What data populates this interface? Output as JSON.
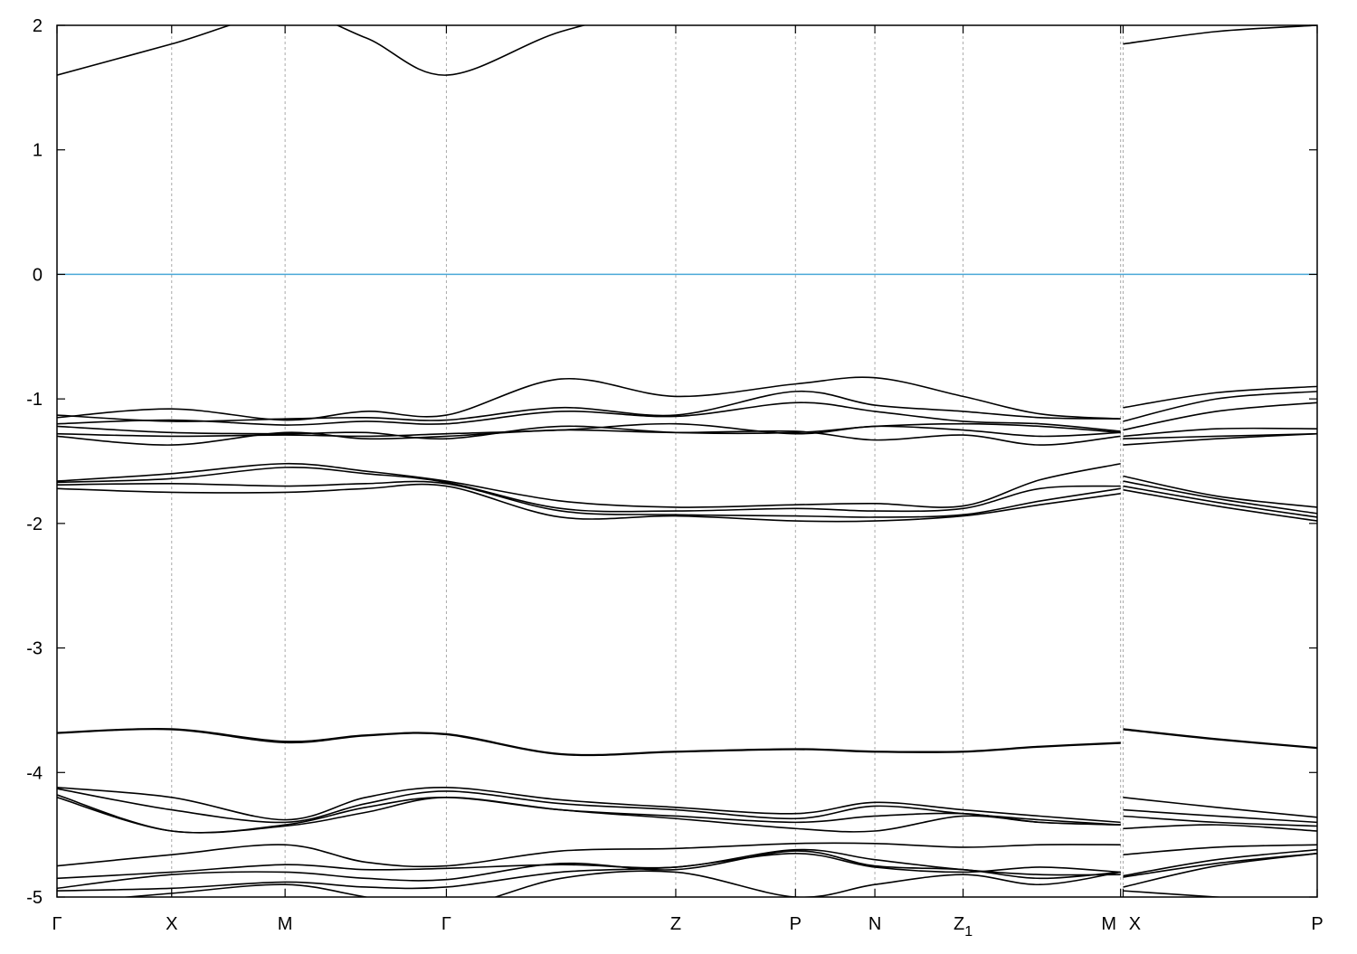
{
  "chart_data": {
    "type": "line",
    "title": "",
    "xlabel": "",
    "ylabel": "",
    "ylim": [
      -5,
      2
    ],
    "xlim": [
      0,
      10
    ],
    "y_ticks": [
      "-5",
      "-4",
      "-3",
      "-2",
      "-1",
      "0",
      "1",
      "2"
    ],
    "grid": "vertical dashed lines at high-symmetry points",
    "fermi_level": {
      "value": 0,
      "color": "#4aa8d8"
    },
    "band_color": "#000000",
    "high_symmetry_points": [
      {
        "label": "Γ",
        "sub": "",
        "k": 0
      },
      {
        "label": "X",
        "sub": "",
        "k": 0.91
      },
      {
        "label": "M",
        "sub": "",
        "k": 1.81
      },
      {
        "label": "Γ",
        "sub": "",
        "k": 3.09
      },
      {
        "label": "Z",
        "sub": "",
        "k": 4.91
      },
      {
        "label": "P",
        "sub": "",
        "k": 5.86
      },
      {
        "label": "N",
        "sub": "",
        "k": 6.49
      },
      {
        "label": "Z",
        "sub": "1",
        "k": 7.19
      },
      {
        "label": "M",
        "sub": "",
        "k": 8.44
      },
      {
        "label": "X",
        "sub": "",
        "k": 8.46
      },
      {
        "label": "P",
        "sub": "",
        "k": 10
      }
    ],
    "segment_a_k": [
      0,
      0.91,
      1.81,
      2.45,
      3.09,
      4.0,
      4.91,
      5.86,
      6.49,
      7.19,
      7.8,
      8.44
    ],
    "segment_b_k": [
      8.46,
      9.2,
      10
    ],
    "bands": [
      {
        "a": [
          1.6,
          1.85,
          2.1,
          1.9,
          1.6,
          1.95,
          2.15,
          2.3,
          2.3,
          2.3,
          2.3,
          2.3
        ],
        "b": [
          1.85,
          1.95,
          2.0
        ]
      },
      {
        "a": [
          -1.15,
          -1.08,
          -1.17,
          -1.1,
          -1.13,
          -0.84,
          -0.98,
          -0.88,
          -0.83,
          -0.98,
          -1.12,
          -1.16
        ],
        "b": [
          -1.07,
          -0.95,
          -0.9
        ]
      },
      {
        "a": [
          -1.13,
          -1.18,
          -1.16,
          -1.15,
          -1.17,
          -1.07,
          -1.13,
          -0.94,
          -1.05,
          -1.1,
          -1.15,
          -1.16
        ],
        "b": [
          -1.18,
          -1.0,
          -0.94
        ]
      },
      {
        "a": [
          -1.2,
          -1.17,
          -1.21,
          -1.18,
          -1.2,
          -1.1,
          -1.14,
          -1.03,
          -1.1,
          -1.18,
          -1.2,
          -1.26
        ],
        "b": [
          -1.25,
          -1.1,
          -1.03
        ]
      },
      {
        "a": [
          -1.22,
          -1.27,
          -1.28,
          -1.27,
          -1.32,
          -1.22,
          -1.27,
          -1.27,
          -1.22,
          -1.2,
          -1.22,
          -1.27
        ],
        "b": [
          -1.3,
          -1.24,
          -1.24
        ]
      },
      {
        "a": [
          -1.28,
          -1.3,
          -1.29,
          -1.3,
          -1.28,
          -1.25,
          -1.2,
          -1.28,
          -1.22,
          -1.25,
          -1.3,
          -1.27
        ],
        "b": [
          -1.32,
          -1.3,
          -1.28
        ]
      },
      {
        "a": [
          -1.3,
          -1.37,
          -1.27,
          -1.32,
          -1.3,
          -1.25,
          -1.27,
          -1.26,
          -1.33,
          -1.29,
          -1.37,
          -1.3
        ],
        "b": [
          -1.37,
          -1.32,
          -1.28
        ]
      },
      {
        "a": [
          -1.66,
          -1.6,
          -1.52,
          -1.58,
          -1.66,
          -1.82,
          -1.87,
          -1.85,
          -1.84,
          -1.86,
          -1.65,
          -1.52
        ],
        "b": [
          -1.62,
          -1.78,
          -1.87
        ]
      },
      {
        "a": [
          -1.67,
          -1.64,
          -1.55,
          -1.6,
          -1.67,
          -1.88,
          -1.9,
          -1.88,
          -1.9,
          -1.88,
          -1.72,
          -1.7
        ],
        "b": [
          -1.66,
          -1.8,
          -1.92
        ]
      },
      {
        "a": [
          -1.69,
          -1.68,
          -1.7,
          -1.68,
          -1.68,
          -1.9,
          -1.93,
          -1.94,
          -1.95,
          -1.93,
          -1.82,
          -1.72
        ],
        "b": [
          -1.7,
          -1.83,
          -1.95
        ]
      },
      {
        "a": [
          -1.72,
          -1.75,
          -1.75,
          -1.72,
          -1.7,
          -1.95,
          -1.94,
          -1.98,
          -1.98,
          -1.94,
          -1.85,
          -1.76
        ],
        "b": [
          -1.73,
          -1.86,
          -1.98
        ]
      },
      {
        "a": [
          -3.68,
          -3.65,
          -3.75,
          -3.7,
          -3.69,
          -3.85,
          -3.83,
          -3.81,
          -3.83,
          -3.83,
          -3.79,
          -3.76
        ],
        "b": [
          -3.65,
          -3.73,
          -3.8
        ]
      },
      {
        "a": [
          -3.685,
          -3.655,
          -3.76,
          -3.705,
          -3.695,
          -3.855,
          -3.835,
          -3.815,
          -3.835,
          -3.835,
          -3.795,
          -3.765
        ],
        "b": [
          -3.655,
          -3.735,
          -3.805
        ]
      },
      {
        "a": [
          -4.12,
          -4.2,
          -4.38,
          -4.2,
          -4.12,
          -4.22,
          -4.28,
          -4.33,
          -4.24,
          -4.3,
          -4.35,
          -4.4
        ],
        "b": [
          -4.2,
          -4.28,
          -4.36
        ]
      },
      {
        "a": [
          -4.13,
          -4.3,
          -4.4,
          -4.25,
          -4.15,
          -4.25,
          -4.3,
          -4.37,
          -4.27,
          -4.33,
          -4.38,
          -4.42
        ],
        "b": [
          -4.3,
          -4.35,
          -4.4
        ]
      },
      {
        "a": [
          -4.18,
          -4.47,
          -4.42,
          -4.28,
          -4.2,
          -4.3,
          -4.35,
          -4.4,
          -4.35,
          -4.33,
          -4.4,
          -4.42
        ],
        "b": [
          -4.35,
          -4.4,
          -4.43
        ]
      },
      {
        "a": [
          -4.2,
          -4.47,
          -4.43,
          -4.32,
          -4.2,
          -4.3,
          -4.37,
          -4.45,
          -4.47,
          -4.35,
          -4.4,
          -4.42
        ],
        "b": [
          -4.45,
          -4.42,
          -4.47
        ]
      },
      {
        "a": [
          -4.75,
          -4.66,
          -4.58,
          -4.72,
          -4.75,
          -4.63,
          -4.61,
          -4.57,
          -4.57,
          -4.6,
          -4.58,
          -4.58
        ],
        "b": [
          -4.66,
          -4.6,
          -4.58
        ]
      },
      {
        "a": [
          -4.85,
          -4.8,
          -4.74,
          -4.78,
          -4.77,
          -4.74,
          -4.76,
          -4.62,
          -4.7,
          -4.78,
          -4.82,
          -4.82
        ],
        "b": [
          -4.83,
          -4.7,
          -4.62
        ]
      },
      {
        "a": [
          -4.93,
          -4.82,
          -4.8,
          -4.85,
          -4.86,
          -4.73,
          -4.78,
          -4.63,
          -4.75,
          -4.78,
          -4.85,
          -4.8
        ],
        "b": [
          -4.84,
          -4.73,
          -4.65
        ]
      },
      {
        "a": [
          -4.95,
          -4.93,
          -4.88,
          -4.92,
          -4.92,
          -4.8,
          -4.76,
          -4.65,
          -4.76,
          -4.8,
          -4.76,
          -4.8
        ],
        "b": [
          -4.92,
          -4.75,
          -4.65
        ]
      },
      {
        "a": [
          -5.05,
          -4.97,
          -4.9,
          -5.0,
          -5.1,
          -4.85,
          -4.8,
          -5.0,
          -4.9,
          -4.82,
          -4.9,
          -4.8
        ],
        "b": [
          -4.95,
          -5.0,
          -5.05
        ]
      }
    ]
  }
}
